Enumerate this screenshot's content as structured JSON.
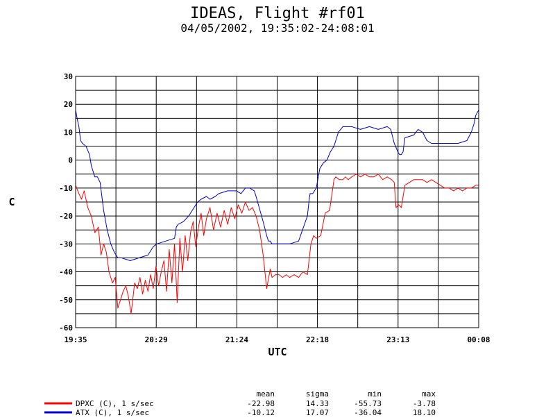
{
  "chart_data": {
    "type": "line",
    "title": "IDEAS, Flight #rf01",
    "subtitle": "04/05/2002, 19:35:02-24:08:01",
    "xlabel": "UTC",
    "ylabel": "C",
    "ylim": [
      -60,
      30
    ],
    "xlim": [
      19.5833,
      24.1333
    ],
    "yticks": [
      30,
      20,
      10,
      0,
      -10,
      -20,
      -30,
      -40,
      -50,
      -60
    ],
    "xtick_labels": [
      "19:35",
      "20:29",
      "21:24",
      "22:18",
      "23:13",
      "00:08"
    ],
    "grid": true,
    "legend_position": "bottom-left",
    "stats_headers": [
      "mean",
      "sigma",
      "min",
      "max"
    ],
    "series": [
      {
        "name": "DPXC (C), 1 s/sec",
        "color": "#ff0000",
        "stats": [
          "-22.98",
          "14.33",
          "-55.73",
          "-3.78"
        ],
        "x": [
          19.583,
          19.62,
          19.65,
          19.68,
          19.72,
          19.76,
          19.8,
          19.84,
          19.87,
          19.9,
          19.93,
          19.96,
          20.0,
          20.03,
          20.06,
          20.09,
          20.12,
          20.15,
          20.18,
          20.21,
          20.25,
          20.28,
          20.31,
          20.34,
          20.37,
          20.4,
          20.43,
          20.46,
          20.49,
          20.52,
          20.55,
          20.58,
          20.61,
          20.64,
          20.67,
          20.7,
          20.73,
          20.76,
          20.79,
          20.82,
          20.85,
          20.88,
          20.91,
          20.94,
          20.97,
          21.0,
          21.03,
          21.06,
          21.1,
          21.14,
          21.18,
          21.22,
          21.26,
          21.3,
          21.34,
          21.38,
          21.42,
          21.46,
          21.5,
          21.54,
          21.58,
          21.62,
          21.66,
          21.7,
          21.74,
          21.78,
          21.8,
          21.84,
          21.88,
          21.92,
          21.96,
          22.0,
          22.05,
          22.1,
          22.15,
          22.2,
          22.24,
          22.26,
          22.27,
          22.3,
          22.35,
          22.4,
          22.45,
          22.5,
          22.52,
          22.56,
          22.6,
          22.63,
          22.66,
          22.7,
          22.75,
          22.8,
          22.85,
          22.9,
          22.95,
          23.0,
          23.05,
          23.1,
          23.15,
          23.18,
          23.2,
          23.23,
          23.26,
          23.3,
          23.35,
          23.4,
          23.45,
          23.5,
          23.55,
          23.6,
          23.65,
          23.7,
          23.75,
          23.8,
          23.85,
          23.9,
          23.95,
          24.0,
          24.05,
          24.1,
          24.133
        ],
        "y": [
          -9,
          -12,
          -14,
          -11,
          -17,
          -20,
          -26,
          -24,
          -34,
          -30,
          -33,
          -40,
          -44,
          -42,
          -53,
          -50,
          -47,
          -45,
          -49,
          -55,
          -44,
          -46,
          -42,
          -48,
          -43,
          -47,
          -41,
          -46,
          -38,
          -45,
          -40,
          -36,
          -47,
          -32,
          -44,
          -30,
          -51,
          -28,
          -40,
          -27,
          -36,
          -26,
          -22,
          -31,
          -24,
          -19,
          -27,
          -21,
          -17,
          -25,
          -19,
          -24,
          -18,
          -23,
          -17,
          -21,
          -16,
          -19,
          -15,
          -18,
          -17,
          -20,
          -25,
          -34,
          -46,
          -39,
          -42,
          -41,
          -41,
          -42,
          -41,
          -42,
          -41,
          -42,
          -40,
          -41,
          -30,
          -28,
          -27,
          -28,
          -27,
          -19,
          -18,
          -7,
          -6,
          -7,
          -7,
          -6,
          -7,
          -6,
          -5,
          -6,
          -5,
          -6,
          -6,
          -5,
          -7,
          -6,
          -7,
          -8,
          -17,
          -16,
          -17,
          -9,
          -8,
          -7,
          -7,
          -7,
          -8,
          -7,
          -8,
          -9,
          -10,
          -10,
          -11,
          -10,
          -11,
          -10,
          -10,
          -9,
          -9
        ]
      },
      {
        "name": "ATX (C), 1 s/sec",
        "color": "#0000cc",
        "stats": [
          "-10.12",
          "17.07",
          "-36.04",
          "18.10"
        ],
        "x": [
          19.583,
          19.6,
          19.62,
          19.64,
          19.66,
          19.7,
          19.74,
          19.76,
          19.8,
          19.83,
          19.86,
          19.9,
          19.94,
          19.98,
          20.02,
          20.06,
          20.1,
          20.2,
          20.3,
          20.4,
          20.46,
          20.5,
          20.6,
          20.7,
          20.72,
          20.74,
          20.8,
          20.86,
          20.9,
          20.96,
          21.0,
          21.06,
          21.1,
          21.16,
          21.2,
          21.3,
          21.4,
          21.45,
          21.5,
          21.55,
          21.6,
          21.62,
          21.7,
          21.74,
          21.76,
          21.78,
          21.8,
          21.85,
          21.9,
          22.0,
          22.1,
          22.2,
          22.22,
          22.23,
          22.26,
          22.3,
          22.34,
          22.38,
          22.42,
          22.46,
          22.5,
          22.55,
          22.6,
          22.7,
          22.8,
          22.9,
          23.0,
          23.1,
          23.14,
          23.18,
          23.22,
          23.24,
          23.26,
          23.28,
          23.3,
          23.4,
          23.45,
          23.5,
          23.55,
          23.6,
          23.7,
          23.8,
          23.9,
          24.0,
          24.05,
          24.08,
          24.1,
          24.133
        ],
        "y": [
          18,
          15,
          12,
          7,
          6,
          5,
          2,
          -2,
          -6,
          -6,
          -8,
          -18,
          -25,
          -30,
          -33,
          -35,
          -35,
          -36,
          -35,
          -34,
          -31,
          -30,
          -29,
          -28,
          -24,
          -23,
          -22,
          -20,
          -18,
          -15,
          -14,
          -13,
          -14,
          -13,
          -12,
          -11,
          -11,
          -12,
          -10,
          -10,
          -11,
          -13,
          -22,
          -27,
          -29,
          -29,
          -30,
          -30,
          -30,
          -30,
          -29,
          -20,
          -14,
          -12,
          -12,
          -10,
          -3,
          -1,
          0,
          3,
          5,
          10,
          12,
          12,
          11,
          12,
          11,
          12,
          11,
          6,
          3,
          2,
          2,
          3,
          8,
          9,
          11,
          10,
          7,
          6,
          6,
          6,
          6,
          7,
          10,
          13,
          16,
          18
        ]
      }
    ]
  }
}
